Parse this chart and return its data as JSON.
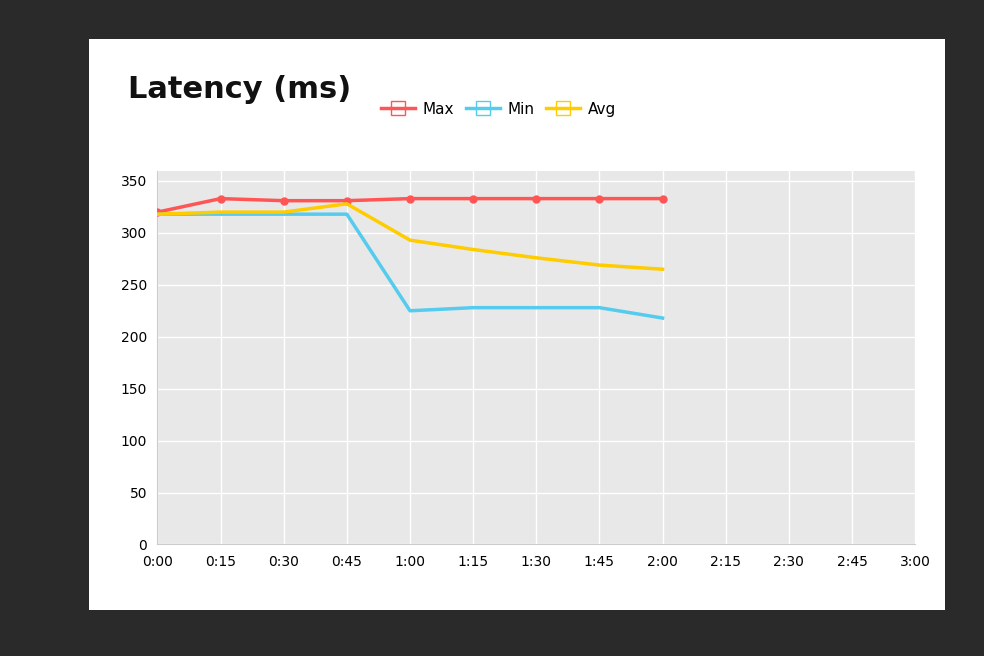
{
  "title": "Latency (ms)",
  "title_fontsize": 22,
  "title_fontweight": "bold",
  "card_color": "#ffffff",
  "outer_bg_color": "#2a2a2a",
  "plot_bg_color": "#e8e8e8",
  "grid_color": "#ffffff",
  "x_ticks_labels": [
    "0:00",
    "0:15",
    "0:30",
    "0:45",
    "1:00",
    "1:15",
    "1:30",
    "1:45",
    "2:00",
    "2:15",
    "2:30",
    "2:45",
    "3:00"
  ],
  "x_ticks_values": [
    0,
    15,
    30,
    45,
    60,
    75,
    90,
    105,
    120,
    135,
    150,
    165,
    180
  ],
  "xlim": [
    0,
    180
  ],
  "ylim": [
    0,
    360
  ],
  "yticks": [
    0,
    50,
    100,
    150,
    200,
    250,
    300,
    350
  ],
  "max_color": "#ff5555",
  "min_color": "#55ccee",
  "avg_color": "#ffcc00",
  "max_x": [
    0,
    15,
    30,
    45,
    60,
    75,
    90,
    105,
    120
  ],
  "max_y": [
    320,
    333,
    331,
    331,
    333,
    333,
    333,
    333,
    333
  ],
  "min_x": [
    0,
    15,
    30,
    45,
    60,
    75,
    90,
    105,
    120
  ],
  "min_y": [
    318,
    318,
    318,
    318,
    225,
    228,
    228,
    228,
    218
  ],
  "avg_x": [
    0,
    15,
    30,
    45,
    60,
    75,
    90,
    105,
    120
  ],
  "avg_y": [
    318,
    320,
    320,
    328,
    293,
    284,
    276,
    269,
    265
  ],
  "legend_labels": [
    "Max",
    "Min",
    "Avg"
  ],
  "linewidth": 2.5,
  "marker_size": 5,
  "tick_fontsize": 10
}
